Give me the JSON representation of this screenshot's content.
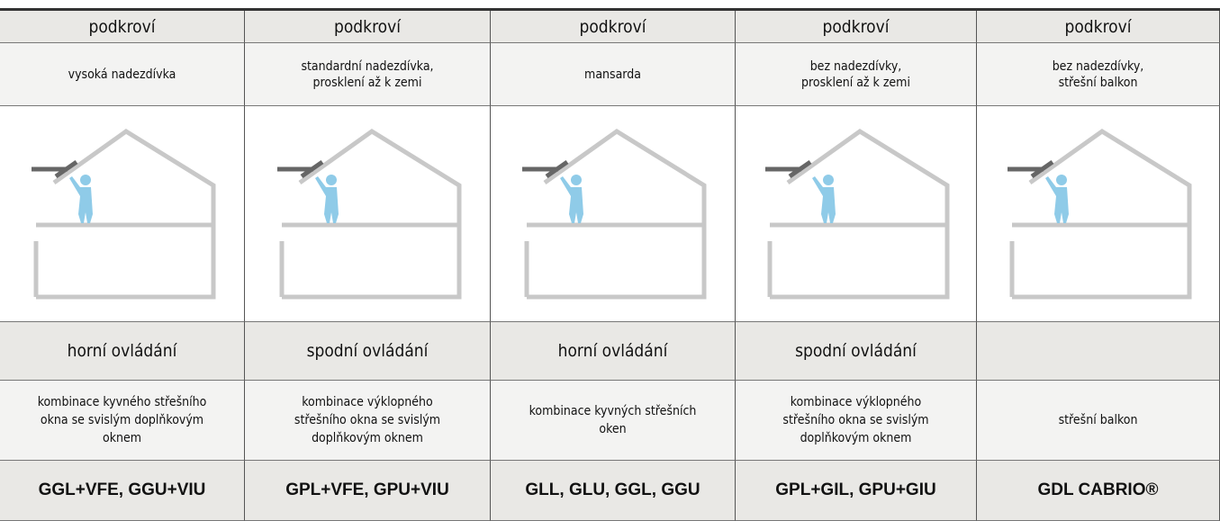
{
  "columns": [
    {
      "room": "podkroví",
      "type": [
        "vysoká nadezdívka"
      ],
      "control": "horní ovládání",
      "description": [
        "kombinace kyvného střešního",
        "okna se svislým doplňkovým",
        "oknem"
      ],
      "products": "GGL+VFE, GGU+VIU"
    },
    {
      "room": "podkroví",
      "type": [
        "standardní nadezdívka,",
        "prosklení až k zemi"
      ],
      "control": "spodní ovládání",
      "description": [
        "kombinace výklopného",
        "střešního okna se svislým",
        "doplňkovým oknem"
      ],
      "products": "GPL+VFE, GPU+VIU"
    },
    {
      "room": "podkroví",
      "type": [
        "mansarda"
      ],
      "control": "horní ovládání",
      "description": [
        "kombinace kyvných střešních",
        "oken"
      ],
      "products": "GLL, GLU, GGL, GGU"
    },
    {
      "room": "podkroví",
      "type": [
        "bez nadezdívky,",
        "prosklení až k zemi"
      ],
      "control": "spodní ovládání",
      "description": [
        "kombinace výklopného",
        "střešního okna se svislým",
        "doplňkovým oknem"
      ],
      "products": "GPL+GIL, GPU+GIU"
    },
    {
      "room": "podkroví",
      "type": [
        "bez nadezdívky,",
        "střešní balkon"
      ],
      "description": [
        "střešní balkon"
      ],
      "products": "GDL CABRIO®"
    }
  ]
}
